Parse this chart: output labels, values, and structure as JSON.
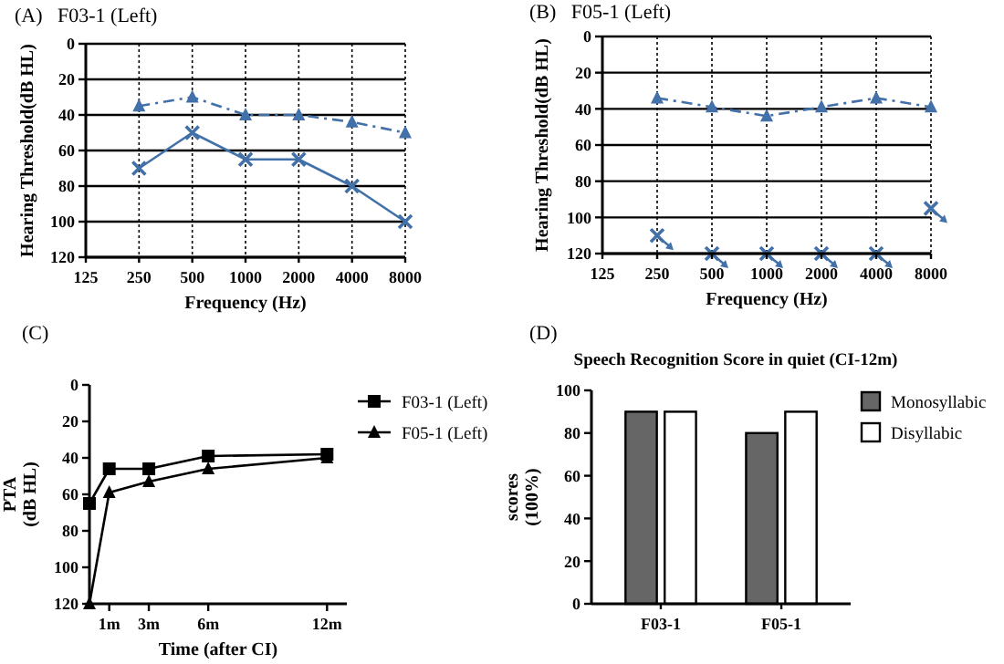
{
  "chart_data": [
    {
      "type": "line",
      "title": "(A)   F03-1 (Left)",
      "xlabel": "Frequency (Hz)",
      "ylabel": "Hearing Threshold(dB HL)",
      "categories": [
        "125",
        "250",
        "500",
        "1000",
        "2000",
        "4000",
        "8000"
      ],
      "ylim": [
        120,
        0
      ],
      "yticks": [
        0,
        20,
        40,
        60,
        80,
        100,
        120
      ],
      "grid": true,
      "legend": false,
      "series": [
        {
          "color": "#4270a8",
          "marker": "triangle",
          "line_style": "dashed",
          "values": [
            null,
            35,
            30,
            40,
            40,
            44,
            50
          ]
        },
        {
          "color": "#4270a8",
          "marker": "cross",
          "values": [
            null,
            70,
            50,
            65,
            65,
            80,
            100
          ]
        }
      ]
    },
    {
      "type": "line",
      "title": "(B)   F05-1 (Left)",
      "xlabel": "Frequency (Hz)",
      "ylabel": "Hearing Threshold(dB HL)",
      "categories": [
        "125",
        "250",
        "500",
        "1000",
        "2000",
        "4000",
        "8000"
      ],
      "ylim": [
        120,
        0
      ],
      "yticks": [
        0,
        20,
        40,
        60,
        80,
        100,
        120
      ],
      "grid": true,
      "legend": false,
      "series": [
        {
          "color": "#4270a8",
          "marker": "triangle",
          "line_style": "dashed",
          "values": [
            null,
            34,
            39,
            44,
            39,
            34,
            39
          ]
        },
        {
          "type": "scatter",
          "color": "#4270a8",
          "marker": "cross",
          "values": [
            null,
            110,
            120,
            120,
            120,
            120,
            95
          ]
        }
      ]
    },
    {
      "type": "line",
      "title": "(C)",
      "xlabel": "Time (after CI)",
      "ylabel": "PTA\n(dB HL)",
      "x": [
        0,
        1,
        3,
        6,
        12
      ],
      "xlim": [
        0,
        13
      ],
      "xticks": [
        {
          "value": 1,
          "label": "1m"
        },
        {
          "value": 3,
          "label": "3m"
        },
        {
          "value": 6,
          "label": "6m"
        },
        {
          "value": 12,
          "label": "12m"
        }
      ],
      "ylim": [
        120,
        0
      ],
      "yticks": [
        0,
        20,
        40,
        60,
        80,
        100,
        120
      ],
      "legend": "right",
      "series": [
        {
          "name": "F03-1 (Left)",
          "color": "#000000",
          "marker": "square",
          "values": [
            65,
            46,
            46,
            39,
            38
          ]
        },
        {
          "name": "F05-1 (Left)",
          "color": "#000000",
          "marker": "triangle",
          "values": [
            120,
            59,
            53,
            46,
            40
          ]
        }
      ]
    },
    {
      "type": "bar",
      "title": "(D)",
      "subtitle": "Speech Recognition Score in quiet (CI-12m)",
      "ylabel": "scores\n(100%)",
      "categories": [
        "F03-1",
        "F05-1"
      ],
      "ylim": [
        0,
        100
      ],
      "yticks": [
        0,
        20,
        40,
        60,
        80,
        100
      ],
      "legend": "right",
      "series": [
        {
          "name": "Monosyllabic",
          "color": "#666666",
          "values": [
            90,
            80
          ]
        },
        {
          "name": "Disyllabic",
          "color": "#ffffff",
          "values": [
            90,
            90
          ]
        }
      ]
    }
  ]
}
